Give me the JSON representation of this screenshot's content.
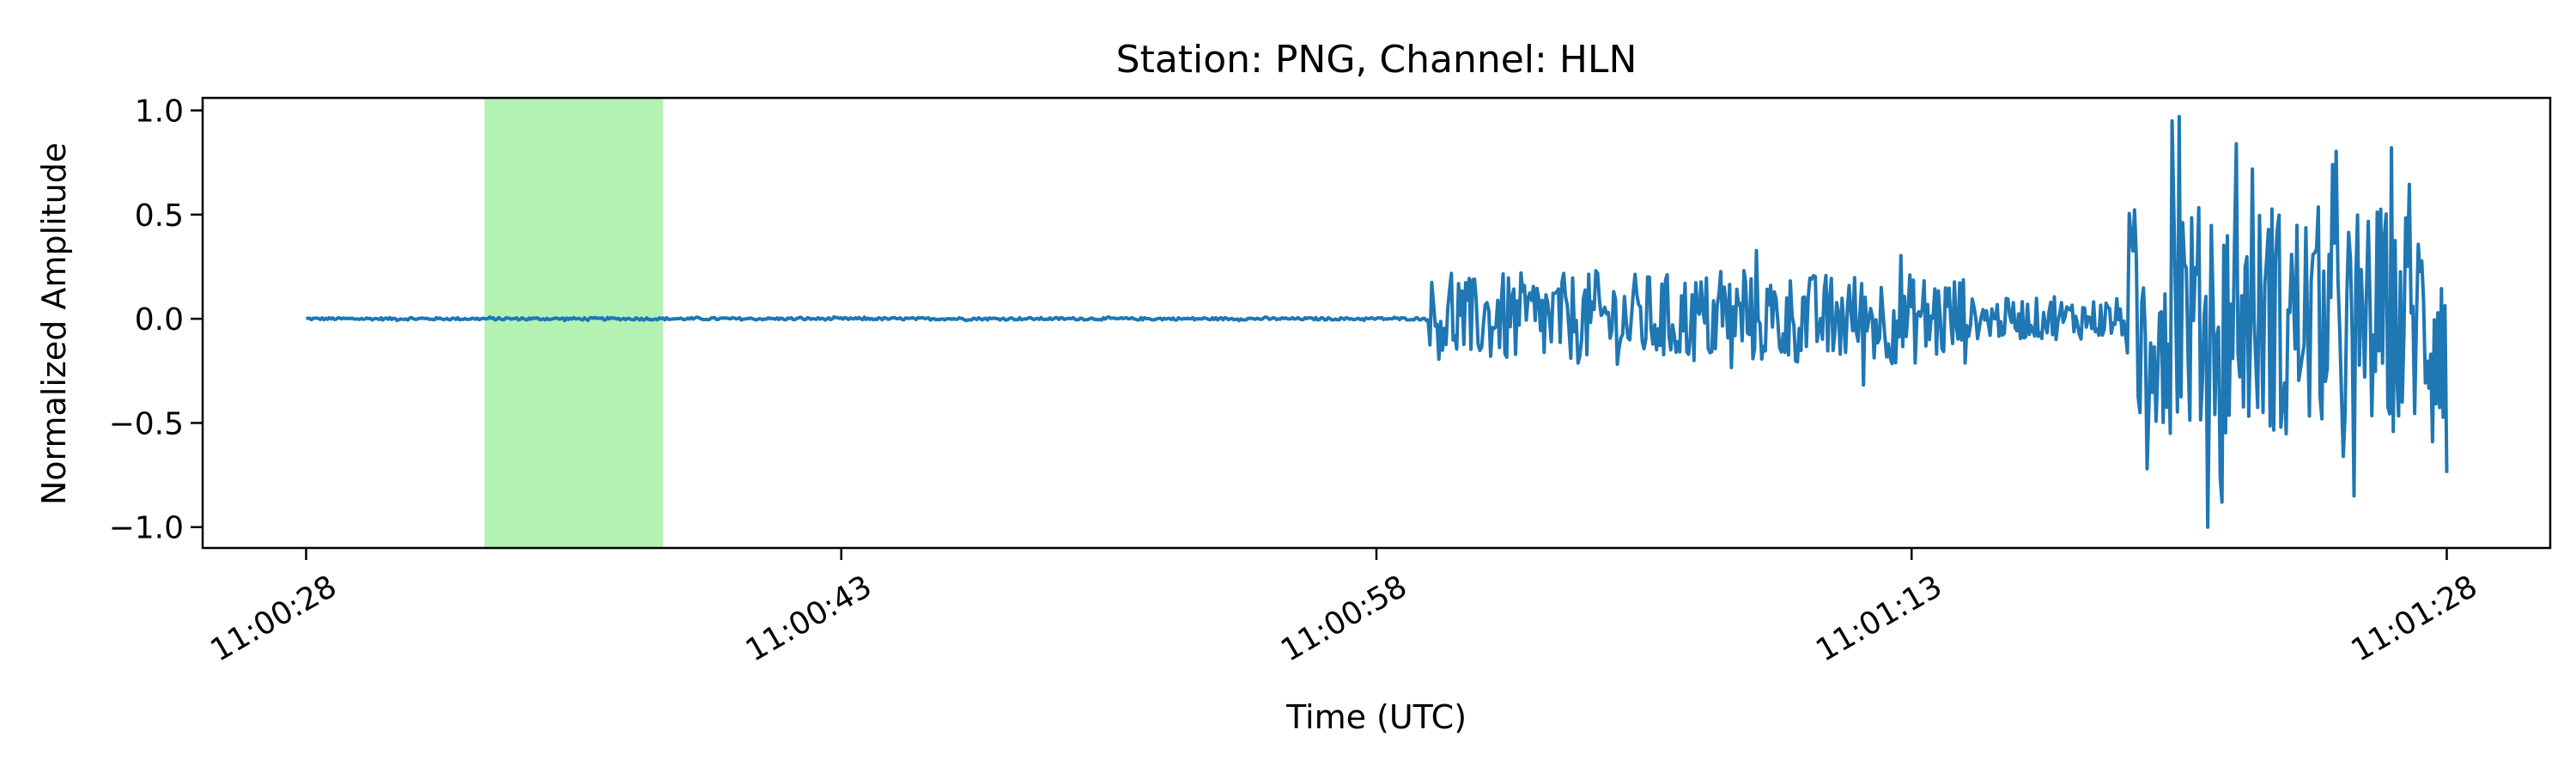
{
  "chart_data": {
    "type": "line",
    "title": "Station: PNG, Channel: HLN",
    "xlabel": "Time (UTC)",
    "ylabel": "Normalized Amplitude",
    "x_ticks": [
      "11:00:28",
      "11:00:43",
      "11:00:58",
      "11:01:13",
      "11:01:28"
    ],
    "x_tick_seconds": [
      0,
      15,
      30,
      45,
      60
    ],
    "x_range_seconds": [
      -2.9,
      62.9
    ],
    "y_ticks": [
      -1.0,
      -0.5,
      0.0,
      0.5,
      1.0
    ],
    "y_tick_labels": [
      "−1.0",
      "−0.5",
      "0.0",
      "0.5",
      "1.0"
    ],
    "ylim": [
      -1.1,
      1.06
    ],
    "grid": false,
    "legend": "none",
    "highlight_window": {
      "start": "11:00:33",
      "end": "11:00:38",
      "start_seconds": 5.0,
      "end_seconds": 10.0,
      "color": "#b3f2b3"
    },
    "series": [
      {
        "color": "#1f77b4",
        "segments": [
          {
            "start": 0,
            "end": 31.5,
            "kind": "noise",
            "amplitude": 0.006
          },
          {
            "start": 31.5,
            "end": 33.2,
            "kind": "noise",
            "amplitude": 0.2
          },
          {
            "start": 33.2,
            "end": 46.5,
            "kind": "noise",
            "amplitude": 0.22
          },
          {
            "start": 46.5,
            "end": 51.0,
            "kind": "noise",
            "amplitude": 0.1
          },
          {
            "start": 51.0,
            "end": 60.0,
            "kind": "noise",
            "amplitude": 0.55
          }
        ],
        "events": [
          {
            "t": 51.4,
            "y": -0.45
          },
          {
            "t": 51.6,
            "y": -0.72
          },
          {
            "t": 52.3,
            "y": 0.95
          },
          {
            "t": 52.5,
            "y": 0.97
          },
          {
            "t": 53.3,
            "y": -1.0
          },
          {
            "t": 53.7,
            "y": -0.88
          },
          {
            "t": 54.1,
            "y": 0.84
          },
          {
            "t": 56.8,
            "y": 0.74
          },
          {
            "t": 57.4,
            "y": -0.85
          },
          {
            "t": 60.0,
            "y": -0.74
          }
        ]
      }
    ]
  }
}
